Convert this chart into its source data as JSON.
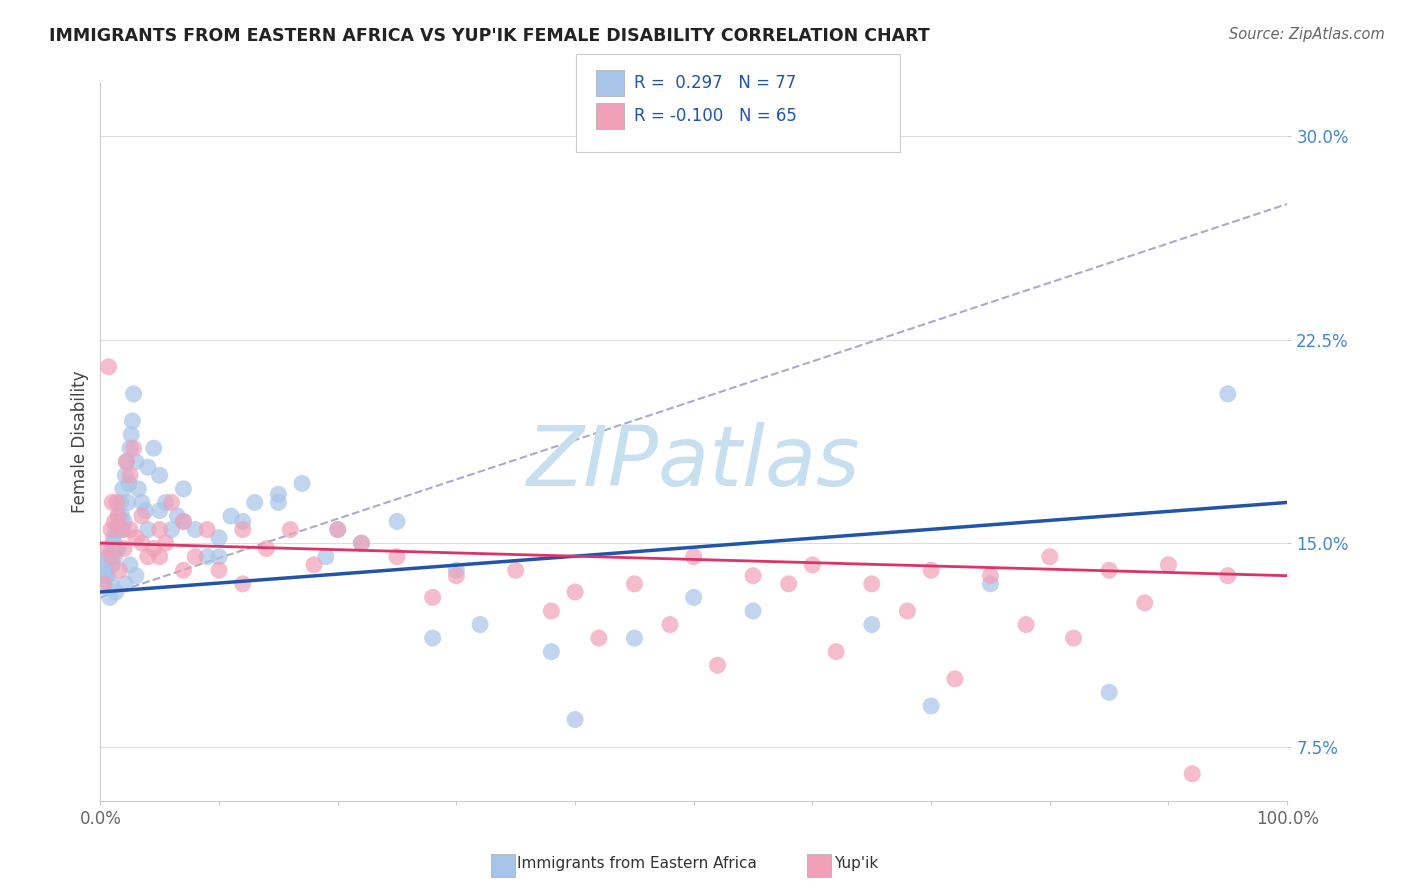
{
  "title": "IMMIGRANTS FROM EASTERN AFRICA VS YUP'IK FEMALE DISABILITY CORRELATION CHART",
  "source": "Source: ZipAtlas.com",
  "ylabel": "Female Disability",
  "blue_color": "#a8c4e8",
  "pink_color": "#f0a0b8",
  "blue_line_color": "#2255aa",
  "pink_line_color": "#dd3366",
  "dash_line_color": "#aaaacc",
  "watermark_color": "#c8dff0",
  "background_color": "#ffffff",
  "grid_color": "#dddddd",
  "ytick_color": "#4488cc",
  "xtick_color": "#666666",
  "yticks": [
    7.5,
    15.0,
    22.5,
    30.0
  ],
  "xticks": [
    0,
    10,
    20,
    30,
    40,
    50,
    60,
    70,
    80,
    90,
    100
  ],
  "xlim": [
    0,
    100
  ],
  "ylim": [
    5.5,
    32.0
  ],
  "blue_line_y0": 13.2,
  "blue_line_y1": 16.5,
  "pink_line_y0": 15.0,
  "pink_line_y1": 13.8,
  "dash_line_y0": 13.0,
  "dash_line_y1": 27.5,
  "blue_scatter_x": [
    0.3,
    0.4,
    0.5,
    0.6,
    0.7,
    0.8,
    0.9,
    1.0,
    1.0,
    1.1,
    1.2,
    1.3,
    1.4,
    1.5,
    1.6,
    1.7,
    1.8,
    1.9,
    2.0,
    2.1,
    2.2,
    2.3,
    2.4,
    2.5,
    2.6,
    2.7,
    2.8,
    3.0,
    3.2,
    3.5,
    3.8,
    4.0,
    4.5,
    5.0,
    5.5,
    6.0,
    6.5,
    7.0,
    8.0,
    9.0,
    10.0,
    11.0,
    12.0,
    13.0,
    15.0,
    17.0,
    19.0,
    22.0,
    25.0,
    28.0,
    32.0,
    38.0,
    45.0,
    55.0,
    65.0,
    75.0,
    85.0,
    95.0,
    40.0,
    0.5,
    0.7,
    1.1,
    1.3,
    1.5,
    1.9,
    2.1,
    2.5,
    3.0,
    4.0,
    5.0,
    7.0,
    10.0,
    15.0,
    20.0,
    30.0,
    50.0,
    70.0
  ],
  "blue_scatter_y": [
    13.5,
    14.0,
    14.2,
    13.8,
    14.5,
    13.0,
    13.5,
    14.8,
    14.2,
    15.0,
    14.5,
    15.5,
    14.8,
    16.0,
    15.5,
    16.5,
    16.0,
    17.0,
    15.8,
    17.5,
    18.0,
    16.5,
    17.2,
    18.5,
    19.0,
    19.5,
    20.5,
    18.0,
    17.0,
    16.5,
    16.2,
    17.8,
    18.5,
    17.5,
    16.5,
    15.5,
    16.0,
    17.0,
    15.5,
    14.5,
    15.2,
    16.0,
    15.8,
    16.5,
    16.8,
    17.2,
    14.5,
    15.0,
    15.8,
    11.5,
    12.0,
    11.0,
    11.5,
    12.5,
    12.0,
    13.5,
    9.5,
    20.5,
    8.5,
    13.8,
    14.5,
    15.2,
    13.2,
    14.8,
    15.5,
    13.5,
    14.2,
    13.8,
    15.5,
    16.2,
    15.8,
    14.5,
    16.5,
    15.5,
    14.0,
    13.0,
    9.0
  ],
  "pink_scatter_x": [
    0.3,
    0.5,
    0.7,
    0.9,
    1.0,
    1.2,
    1.4,
    1.6,
    1.8,
    2.0,
    2.2,
    2.5,
    2.8,
    3.0,
    3.5,
    4.0,
    4.5,
    5.0,
    5.5,
    6.0,
    7.0,
    8.0,
    9.0,
    10.0,
    12.0,
    14.0,
    16.0,
    18.0,
    22.0,
    25.0,
    30.0,
    35.0,
    40.0,
    45.0,
    50.0,
    55.0,
    60.0,
    65.0,
    70.0,
    75.0,
    80.0,
    85.0,
    90.0,
    95.0,
    1.0,
    1.5,
    2.5,
    3.5,
    5.0,
    7.0,
    12.0,
    20.0,
    28.0,
    38.0,
    48.0,
    58.0,
    68.0,
    78.0,
    88.0,
    42.0,
    52.0,
    62.0,
    72.0,
    82.0,
    92.0
  ],
  "pink_scatter_y": [
    13.5,
    14.8,
    21.5,
    15.5,
    14.5,
    15.8,
    16.5,
    14.0,
    15.5,
    14.8,
    18.0,
    17.5,
    18.5,
    15.2,
    16.0,
    14.5,
    14.8,
    15.5,
    15.0,
    16.5,
    15.8,
    14.5,
    15.5,
    14.0,
    15.5,
    14.8,
    15.5,
    14.2,
    15.0,
    14.5,
    13.8,
    14.0,
    13.2,
    13.5,
    14.5,
    13.8,
    14.2,
    13.5,
    14.0,
    13.8,
    14.5,
    14.0,
    14.2,
    13.8,
    16.5,
    16.0,
    15.5,
    15.0,
    14.5,
    14.0,
    13.5,
    15.5,
    13.0,
    12.5,
    12.0,
    13.5,
    12.5,
    12.0,
    12.8,
    11.5,
    10.5,
    11.0,
    10.0,
    11.5,
    6.5
  ]
}
